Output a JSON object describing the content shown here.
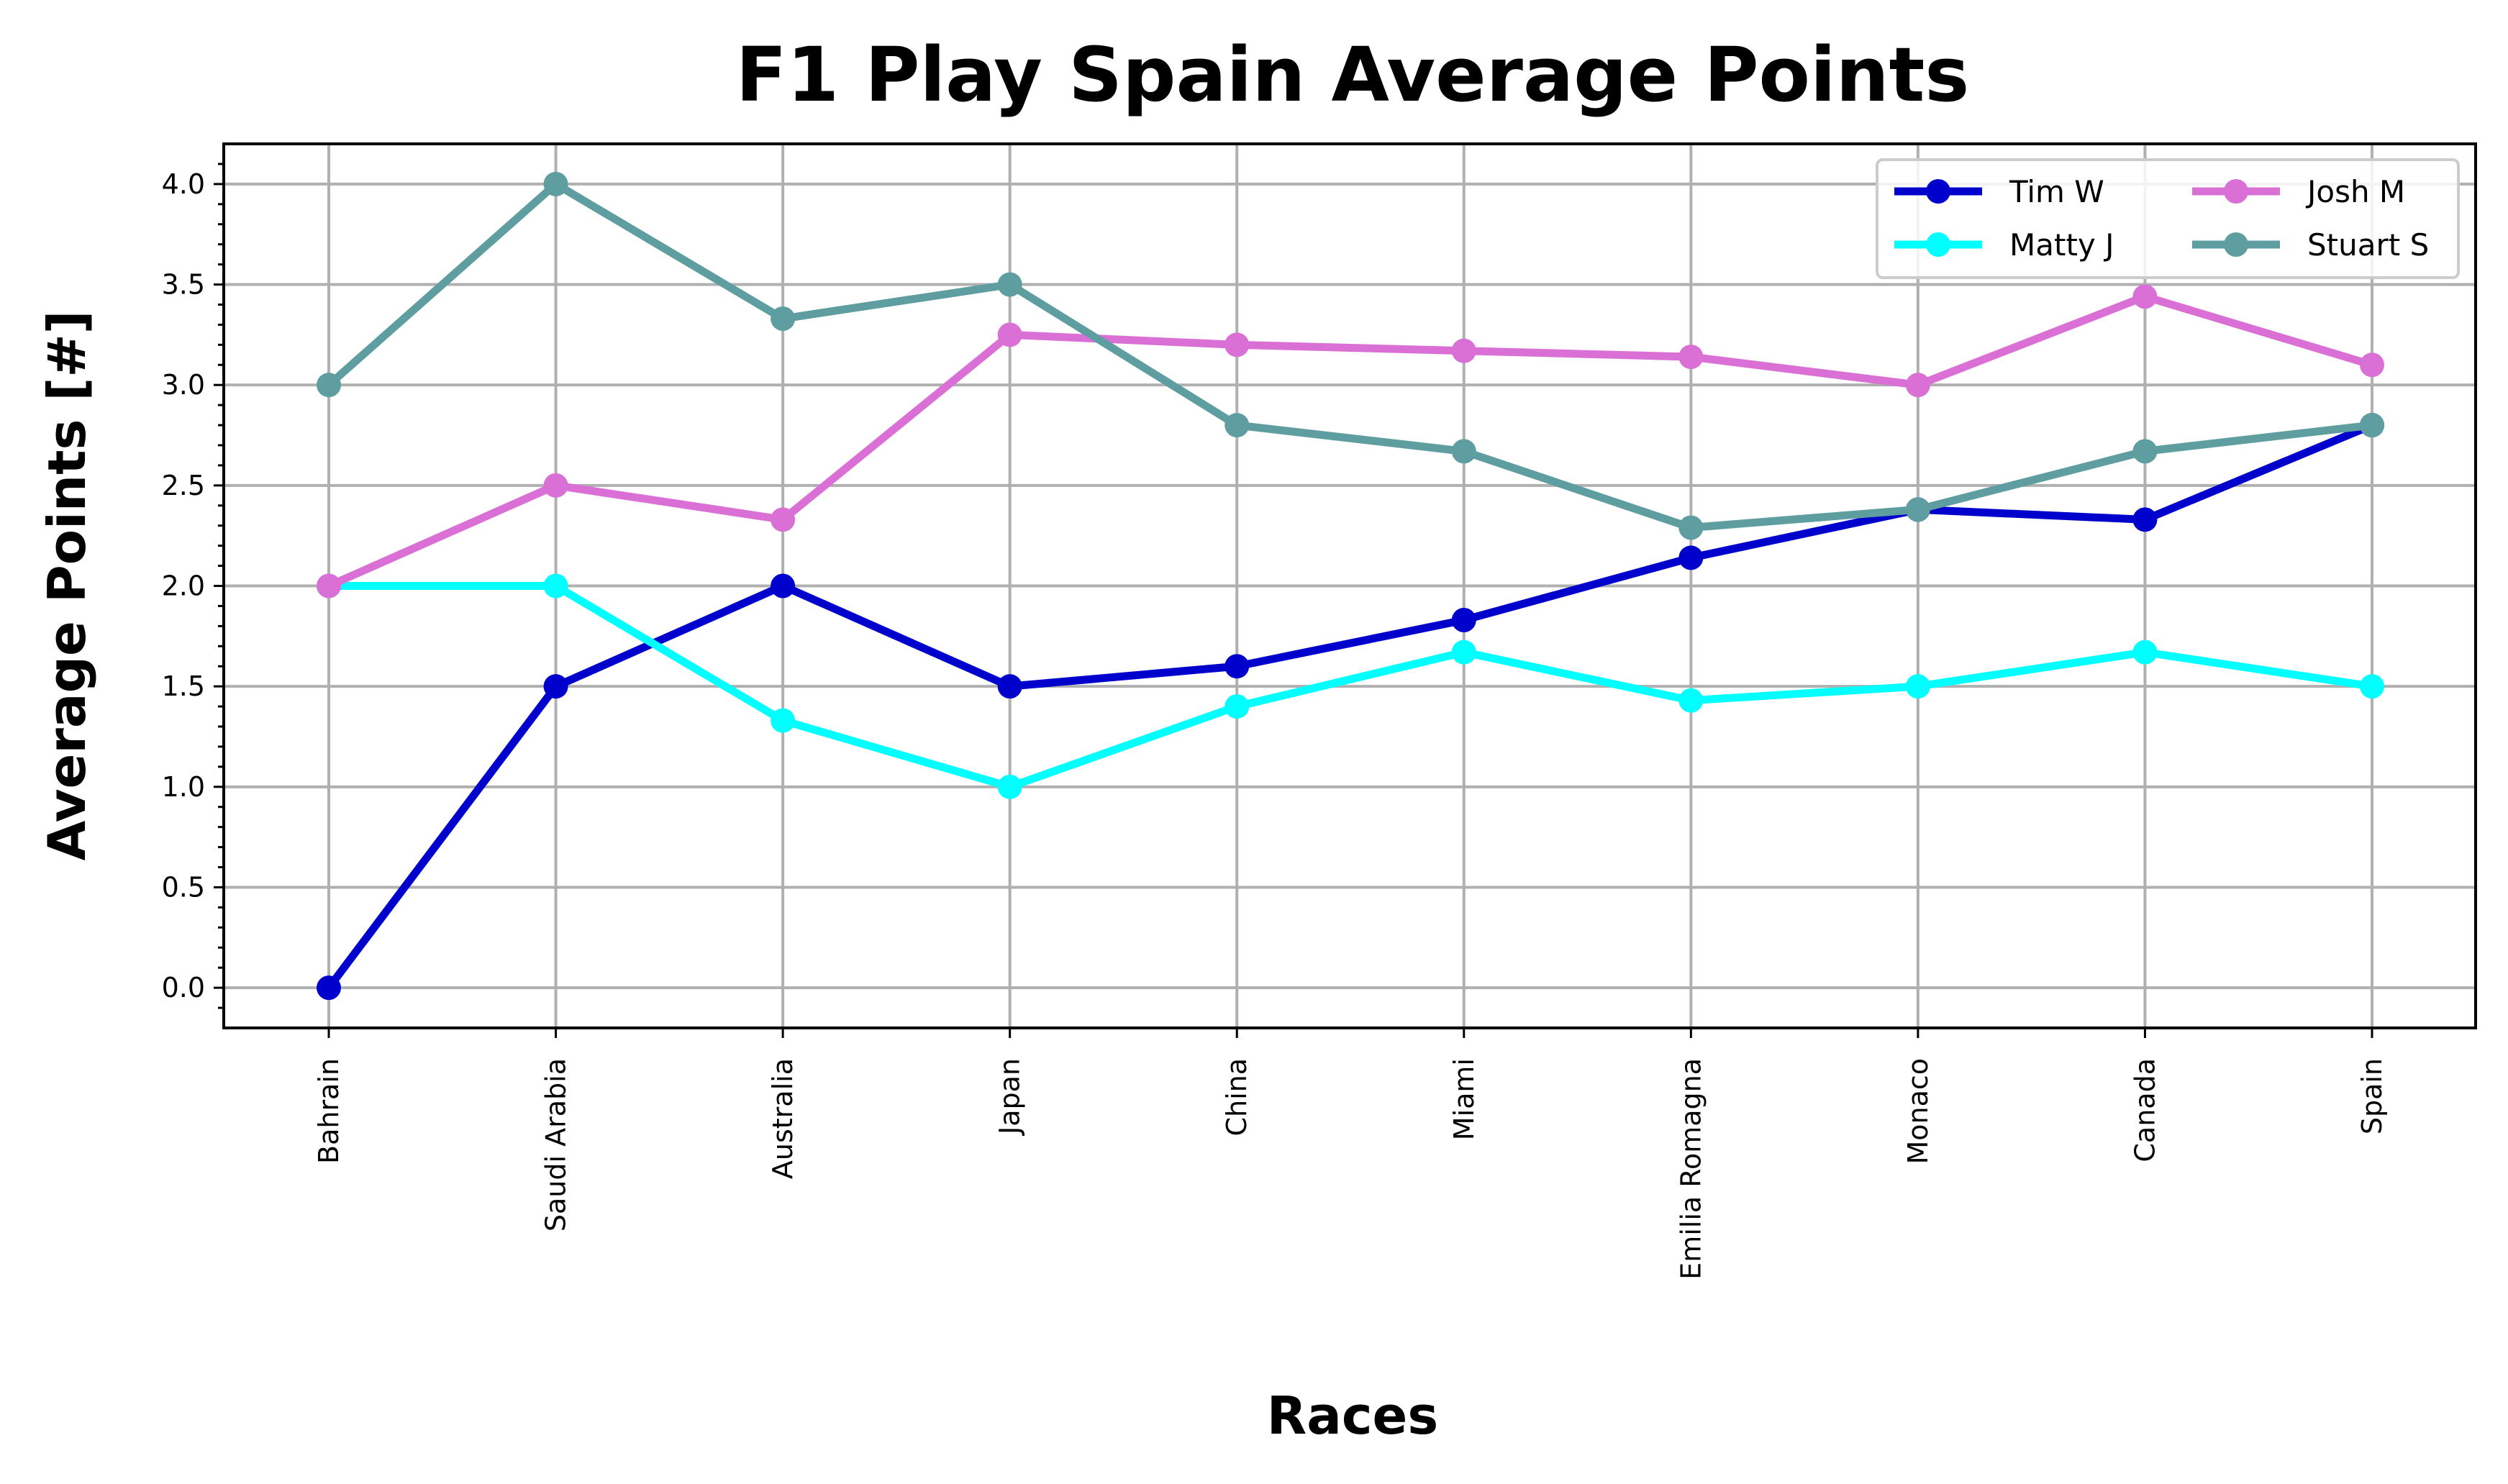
{
  "chart_data": {
    "type": "line",
    "title": "F1 Play Spain Average Points",
    "xlabel": "Races",
    "ylabel": "Average Points [#]",
    "categories": [
      "Bahrain",
      "Saudi Arabia",
      "Australia",
      "Japan",
      "China",
      "Miami",
      "Emilia Romagna",
      "Monaco",
      "Canada",
      "Spain"
    ],
    "ylim": [
      -0.2,
      4.2
    ],
    "yticks": [
      0.0,
      0.5,
      1.0,
      1.5,
      2.0,
      2.5,
      3.0,
      3.5,
      4.0
    ],
    "ytick_labels": [
      "0.0",
      "0.5",
      "1.0",
      "1.5",
      "2.0",
      "2.5",
      "3.0",
      "3.5",
      "4.0"
    ],
    "grid": true,
    "legend_position": "top-right",
    "series": [
      {
        "name": "Tim W",
        "color": "#0000cd",
        "values": [
          0.0,
          1.5,
          2.0,
          1.5,
          1.6,
          1.83,
          2.14,
          2.38,
          2.33,
          2.8
        ]
      },
      {
        "name": "Matty J",
        "color": "#00ffff",
        "values": [
          2.0,
          2.0,
          1.33,
          1.0,
          1.4,
          1.67,
          1.43,
          1.5,
          1.67,
          1.5
        ]
      },
      {
        "name": "Josh M",
        "color": "#da70d6",
        "values": [
          2.0,
          2.5,
          2.33,
          3.25,
          3.2,
          3.17,
          3.14,
          3.0,
          3.44,
          3.1
        ]
      },
      {
        "name": "Stuart S",
        "color": "#5f9ea0",
        "values": [
          3.0,
          4.0,
          3.33,
          3.5,
          2.8,
          2.67,
          2.29,
          2.38,
          2.67,
          2.8
        ]
      }
    ]
  }
}
